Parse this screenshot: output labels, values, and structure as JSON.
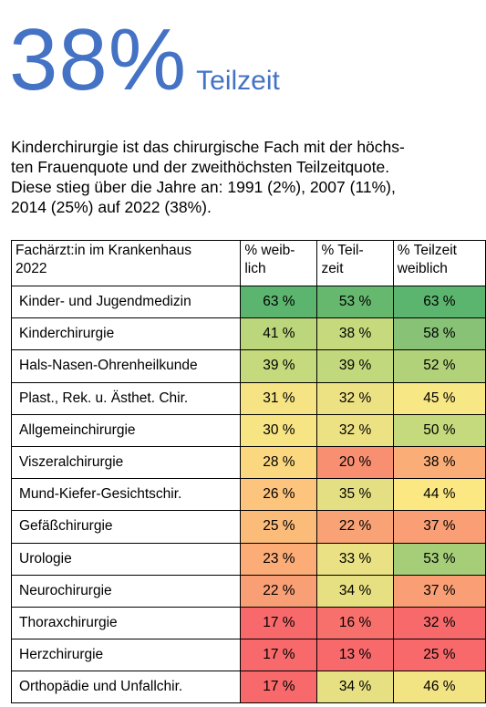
{
  "headline": {
    "big": "38%",
    "small": "Teilzeit"
  },
  "intro": "Kinderchirurgie ist das chirurgische Fach mit der höchs-ten Frauenquote und der zweithöchsten Teilzeitquote. Diese stieg über die Jahre an: 1991 (2%), 2007 (11%), 2014 (25%) auf 2022 (38%).",
  "intro_lines": [
    "Kinderchirurgie ist das chirurgische Fach mit der höchs-",
    "ten Frauenquote und der zweithöchsten Teilzeitquote.",
    "Diese stieg über die Jahre an: 1991 (2%), 2007 (11%),",
    "2014 (25%) auf 2022 (38%)."
  ],
  "table": {
    "headers": [
      [
        "Fachärzt:in im Krankenhaus",
        "2022"
      ],
      [
        "% weib-",
        "lich"
      ],
      [
        "% Teil-",
        "zeit"
      ],
      [
        "% Teilzeit",
        "weiblich"
      ]
    ],
    "rows": [
      {
        "name": "Kinder- und Jugendmedizin",
        "values": [
          "63 %",
          "53 %",
          "63 %"
        ],
        "colors": [
          "#5cb56e",
          "#66b86f",
          "#5cb56e"
        ]
      },
      {
        "name": "Kinderchirurgie",
        "values": [
          "41 %",
          "38 %",
          "58 %"
        ],
        "colors": [
          "#bcd67c",
          "#c6d97d",
          "#87c277"
        ]
      },
      {
        "name": "Hals-Nasen-Ohrenheilkunde",
        "values": [
          "39 %",
          "39 %",
          "52 %"
        ],
        "colors": [
          "#c5d97d",
          "#c2d87c",
          "#b2d27a"
        ]
      },
      {
        "name": "Plast., Rek. u. Ästhet. Chir.",
        "values": [
          "31 %",
          "32 %",
          "45 %"
        ],
        "colors": [
          "#f5e384",
          "#ede283",
          "#f8e785"
        ]
      },
      {
        "name": "Allgemeinchirurgie",
        "values": [
          "30 %",
          "32 %",
          "50 %"
        ],
        "colors": [
          "#f7e482",
          "#ede283",
          "#c5d97d"
        ]
      },
      {
        "name": "Viszeralchirurgie",
        "values": [
          "28 %",
          "20 %",
          "38 %"
        ],
        "colors": [
          "#fbd780",
          "#f88f71",
          "#fbad78"
        ]
      },
      {
        "name": "Mund-Kiefer-Gesichtschir.",
        "values": [
          "26 %",
          "35 %",
          "44 %"
        ],
        "colors": [
          "#fcc47c",
          "#e4df82",
          "#fbe883"
        ]
      },
      {
        "name": "Gefäßchirurgie",
        "values": [
          "25 %",
          "22 %",
          "37 %"
        ],
        "colors": [
          "#fbbc7a",
          "#f9a276",
          "#fa9f75"
        ]
      },
      {
        "name": "Urologie",
        "values": [
          "23 %",
          "33 %",
          "53 %"
        ],
        "colors": [
          "#fbac77",
          "#e9e183",
          "#a6ce79"
        ]
      },
      {
        "name": "Neurochirurgie",
        "values": [
          "22 %",
          "34 %",
          "37 %"
        ],
        "colors": [
          "#f99f75",
          "#e7e082",
          "#fa9f75"
        ]
      },
      {
        "name": "Thoraxchirurgie",
        "values": [
          "17 %",
          "16 %",
          "32 %"
        ],
        "colors": [
          "#f8696b",
          "#f8706c",
          "#f8696b"
        ]
      },
      {
        "name": "Herzchirurgie",
        "values": [
          "17 %",
          "13 %",
          "25 %"
        ],
        "colors": [
          "#f8696b",
          "#f8696b",
          "#f8696b"
        ]
      },
      {
        "name": "Orthopädie und Unfallchir.",
        "values": [
          "17 %",
          "34 %",
          "46 %"
        ],
        "colors": [
          "#f8696b",
          "#e7e082",
          "#f2e383"
        ]
      }
    ]
  }
}
